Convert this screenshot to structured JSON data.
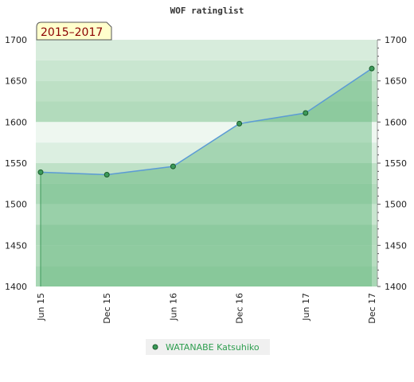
{
  "chart_data": {
    "type": "line",
    "title": "WOF ratinglist",
    "period_label": "2015–2017",
    "categories": [
      "Jun 15",
      "Dec 15",
      "Jun 16",
      "Dec 16",
      "Jun 17",
      "Dec 17"
    ],
    "series": [
      {
        "name": "WATANABE Katsuhiko",
        "values": [
          1539,
          1536,
          1546,
          1598,
          1611,
          1665
        ]
      }
    ],
    "ylim": [
      1400,
      1700
    ],
    "yticks": [
      1400,
      1450,
      1500,
      1550,
      1600,
      1650,
      1700
    ],
    "ytick_labels": [
      "1400",
      "1450",
      "1500",
      "1550",
      "1600",
      "1650",
      "1700"
    ],
    "grid": true,
    "legend_position": "bottom-center",
    "colors": {
      "line": "#5b9bd5",
      "area": "#5fb57a",
      "marker": "#3c9a5a",
      "legend_text": "#2e9e4f",
      "period_bg": "#ffffcc",
      "period_text": "#8b0000"
    }
  }
}
